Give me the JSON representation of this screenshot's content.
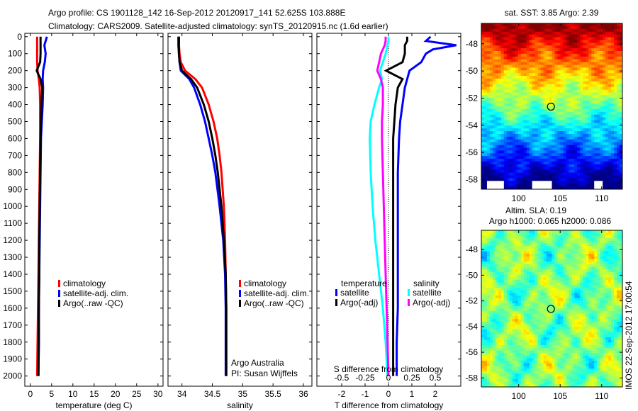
{
  "header": {
    "line1": "Argo profile: CS 1901128_142 16-Sep-2012 20120917_141 52.625S 103.888E",
    "line2": "Climatology: CARS2009. Satellite-adjusted climatology: synTS_20120915.nc (1.6d earlier)"
  },
  "footer_stamp": "IMOS 22-Sep-2012 17:00:54",
  "colors": {
    "climatology": "#ff0000",
    "satellite": "#0000ff",
    "argo": "#000000",
    "sal_satellite": "#00ffff",
    "sal_argo": "#ff00ff"
  },
  "chart_data": [
    {
      "type": "line",
      "id": "temperature",
      "xlabel": "temperature (deg C)",
      "ylabel": "",
      "xlim": [
        -1.3,
        31.2
      ],
      "ylim": [
        2060,
        -20
      ],
      "xticks": [
        0,
        5,
        10,
        15,
        20,
        25,
        30
      ],
      "yticks": [
        0,
        100,
        200,
        300,
        400,
        500,
        600,
        700,
        800,
        900,
        1000,
        1100,
        1200,
        1300,
        1400,
        1500,
        1600,
        1700,
        1800,
        1900,
        2000
      ],
      "depth": [
        0,
        50,
        100,
        150,
        200,
        250,
        300,
        400,
        500,
        600,
        800,
        1000,
        1200,
        1400,
        1600,
        1800,
        2000
      ],
      "series": [
        {
          "name": "climatology",
          "color": "#ff0000",
          "values": [
            1.6,
            1.6,
            1.6,
            1.6,
            1.7,
            2.0,
            2.2,
            2.3,
            2.3,
            2.3,
            2.2,
            2.1,
            2.0,
            1.9,
            1.8,
            1.7,
            1.6
          ]
        },
        {
          "name": "satellite-adj. clim.",
          "color": "#0000ff",
          "values": [
            3.9,
            3.3,
            3.6,
            3.4,
            3.0,
            2.9,
            3.0,
            2.9,
            2.7,
            2.5,
            2.4,
            2.3,
            2.2,
            2.1,
            2.0,
            2.0,
            1.9
          ]
        },
        {
          "name": "Argo(..raw -QC)",
          "color": "#000000",
          "values": [
            2.4,
            2.4,
            2.4,
            2.3,
            1.5,
            2.4,
            2.8,
            2.6,
            2.5,
            2.4,
            2.3,
            2.2,
            2.1,
            2.1,
            2.0,
            2.0,
            1.9
          ]
        }
      ],
      "legend": {
        "placement": "lower-left",
        "entries": [
          "climatology",
          "satellite-adj. clim.",
          "Argo(..raw -QC)"
        ]
      }
    },
    {
      "type": "line",
      "id": "salinity",
      "xlabel": "salinity",
      "xlim": [
        33.77,
        36.14
      ],
      "ylim": [
        2060,
        -20
      ],
      "xticks": [
        34,
        34.5,
        35,
        35.5,
        36
      ],
      "xticklabels": [
        "34",
        "34.5",
        "35",
        "35.5",
        "36"
      ],
      "depth": [
        0,
        50,
        100,
        150,
        200,
        250,
        300,
        400,
        500,
        600,
        700,
        800,
        1000,
        1200,
        1400,
        1600,
        1800,
        2000
      ],
      "series": [
        {
          "name": "climatology",
          "color": "#ff0000",
          "values": [
            33.95,
            33.95,
            33.96,
            33.98,
            34.05,
            34.22,
            34.33,
            34.44,
            34.52,
            34.58,
            34.62,
            34.65,
            34.69,
            34.71,
            34.72,
            34.73,
            34.73,
            34.73
          ]
        },
        {
          "name": "satellite-adj. clim.",
          "color": "#0000ff",
          "values": [
            33.94,
            33.94,
            33.95,
            33.96,
            33.98,
            34.12,
            34.2,
            34.3,
            34.38,
            34.44,
            34.5,
            34.55,
            34.62,
            34.68,
            34.71,
            34.72,
            34.72,
            34.72
          ]
        },
        {
          "name": "Argo(..raw -QC)",
          "color": "#000000",
          "values": [
            33.95,
            33.95,
            33.95,
            33.96,
            34.0,
            34.15,
            34.25,
            34.36,
            34.44,
            34.5,
            34.55,
            34.59,
            34.65,
            34.69,
            34.72,
            34.73,
            34.73,
            34.73
          ]
        }
      ],
      "legend": {
        "placement": "lower-right",
        "entries": [
          "climatology",
          "satellite-adj. clim.",
          "Argo(..raw -QC)"
        ]
      },
      "annotation": [
        "Argo Australia",
        "PI: Susan Wijffels"
      ]
    },
    {
      "type": "line",
      "id": "differences",
      "xlabel": "T difference from climatology",
      "top_xlabel": "S difference from climatology",
      "xlim": [
        -3.06,
        3.09
      ],
      "ylim": [
        2060,
        -20
      ],
      "xticks": [
        -2,
        -1,
        0,
        1,
        2
      ],
      "top_xticks": [
        -0.5,
        -0.25,
        0,
        0.25,
        0.5
      ],
      "top_xticklabels": [
        "-0.5",
        "-0.25",
        "0",
        "0.25",
        "0.5"
      ],
      "depth": [
        0,
        25,
        50,
        75,
        100,
        150,
        200,
        250,
        300,
        400,
        500,
        600,
        800,
        1000,
        1200,
        1400,
        1600,
        1800,
        2000
      ],
      "series": [
        {
          "name": "temperature satellite",
          "axis": "T",
          "color": "#0000ff",
          "values": [
            1.8,
            1.6,
            2.9,
            1.9,
            1.6,
            1.4,
            0.9,
            0.8,
            0.7,
            0.6,
            0.5,
            0.45,
            0.4,
            0.4,
            0.4,
            0.4,
            0.4,
            0.35,
            0.35
          ]
        },
        {
          "name": "temperature Argo(-adj)",
          "axis": "T",
          "color": "#000000",
          "values": [
            0.8,
            0.8,
            0.7,
            0.7,
            0.7,
            0.6,
            -0.1,
            0.6,
            0.4,
            0.3,
            0.25,
            0.2,
            0.2,
            0.2,
            0.2,
            0.2,
            0.2,
            0.2,
            0.2
          ]
        },
        {
          "name": "salinity satellite",
          "axis": "S",
          "color": "#00ffff",
          "values": [
            0.0,
            0.0,
            -0.01,
            -0.02,
            -0.03,
            -0.06,
            -0.09,
            -0.07,
            -0.1,
            -0.15,
            -0.19,
            -0.2,
            -0.19,
            -0.17,
            -0.14,
            -0.1,
            -0.06,
            -0.03,
            -0.01
          ]
        },
        {
          "name": "salinity Argo(-adj)",
          "axis": "S",
          "color": "#ff00ff",
          "values": [
            -0.03,
            -0.03,
            -0.04,
            -0.06,
            -0.08,
            -0.1,
            -0.12,
            -0.08,
            -0.06,
            -0.06,
            -0.07,
            -0.07,
            -0.06,
            -0.05,
            -0.04,
            -0.03,
            -0.02,
            -0.01,
            0.0
          ]
        }
      ],
      "legend": {
        "placement": "lower-center",
        "temperature_title": "temperature",
        "salinity_title": "salinity",
        "entries": [
          "satellite",
          "Argo(-adj)",
          "satellite",
          "Argo(-adj)"
        ]
      }
    },
    {
      "type": "heatmap",
      "id": "sst-map",
      "title": "sat. SST: 3.85 Argo: 2.39",
      "xlim": [
        95.5,
        112.5
      ],
      "ylim": [
        -58.7,
        -46.5
      ],
      "xticks": [
        100,
        105,
        110
      ],
      "yticks": [
        -48,
        -50,
        -52,
        -54,
        -56,
        -58
      ],
      "argo_position": [
        103.888,
        -52.625
      ]
    },
    {
      "type": "heatmap",
      "id": "sla-map",
      "title": [
        "Altim. SLA: 0.19",
        "Argo h1000: 0.065 h2000: 0.086"
      ],
      "xlim": [
        95.5,
        112.5
      ],
      "ylim": [
        -58.7,
        -46.5
      ],
      "xticks": [
        100,
        105,
        110
      ],
      "yticks": [
        -48,
        -50,
        -52,
        -54,
        -56,
        -58
      ],
      "argo_position": [
        103.888,
        -52.625
      ]
    }
  ]
}
